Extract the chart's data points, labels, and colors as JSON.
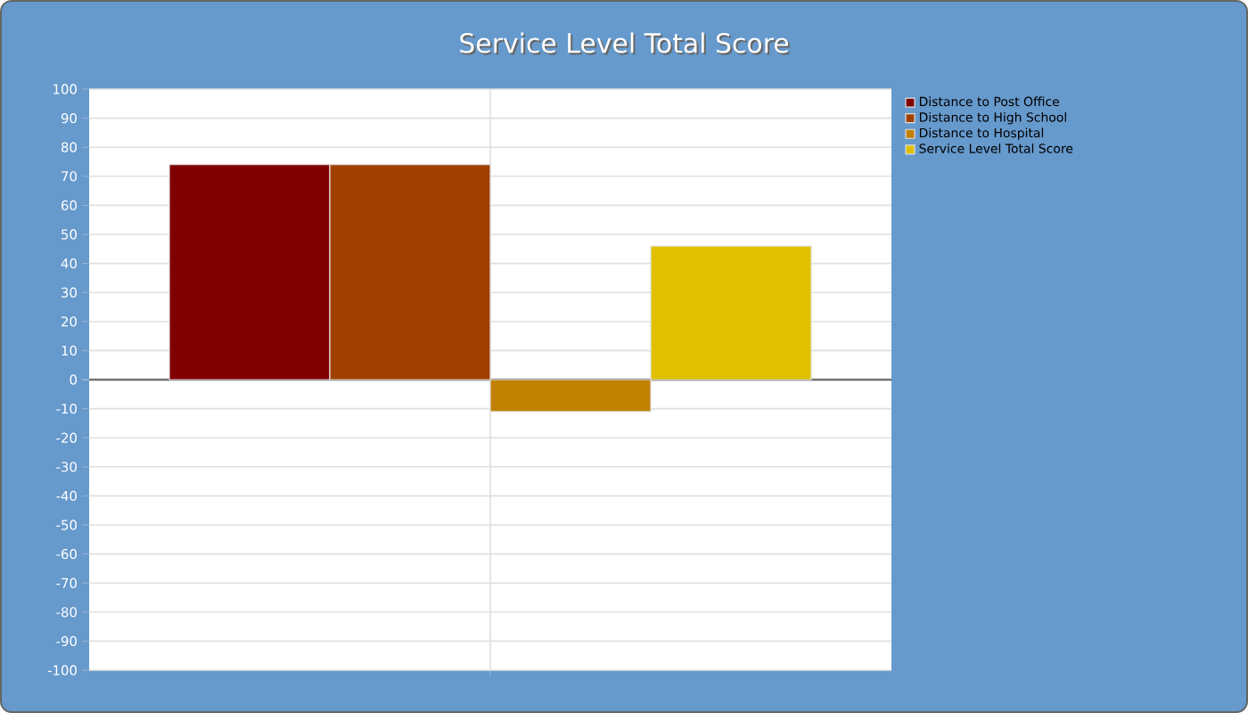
{
  "chart_data": {
    "type": "bar",
    "title": "Service Level Total Score",
    "categories": [
      null
    ],
    "series": [
      {
        "name": "Distance to Post Office",
        "color": "#800000",
        "values": [
          74
        ]
      },
      {
        "name": "Distance to High School",
        "color": "#a04000",
        "values": [
          74
        ]
      },
      {
        "name": "Distance to Hospital",
        "color": "#c08000",
        "values": [
          -11
        ]
      },
      {
        "name": "Service Level Total Score",
        "color": "#e0c000",
        "values": [
          46
        ]
      }
    ],
    "ylim": [
      -100,
      100
    ],
    "yticks": [
      -100,
      -90,
      -80,
      -70,
      -60,
      -50,
      -40,
      -30,
      -20,
      -10,
      0,
      10,
      20,
      30,
      40,
      50,
      60,
      70,
      80,
      90,
      100
    ],
    "grid": true,
    "legend": "top right"
  }
}
